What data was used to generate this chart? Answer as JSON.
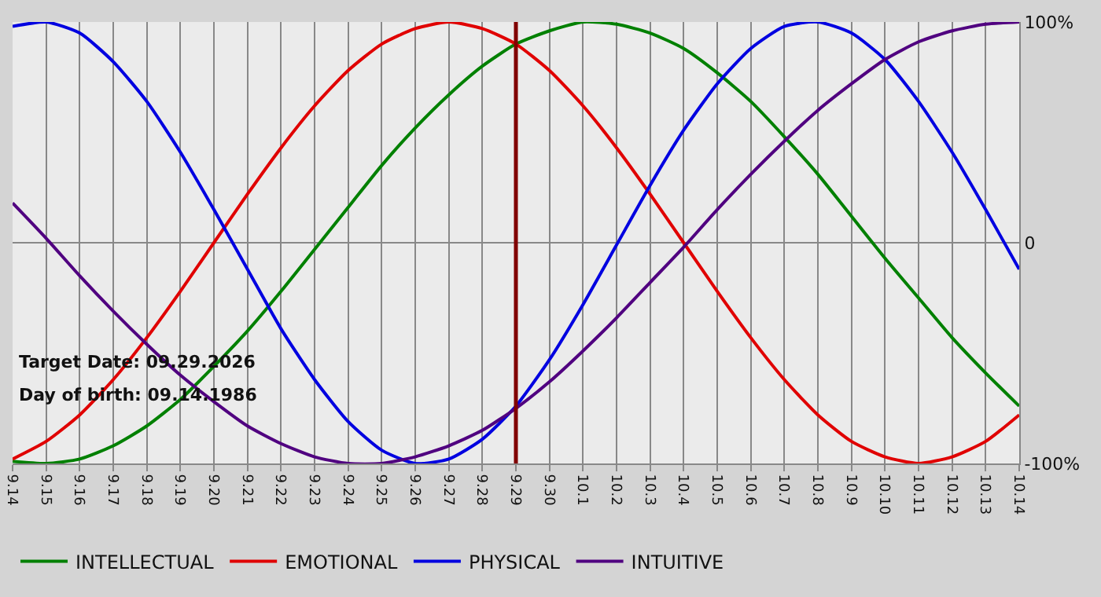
{
  "chart_data": {
    "type": "line",
    "categories": [
      "9.14",
      "9.15",
      "9.16",
      "9.17",
      "9.18",
      "9.19",
      "9.20",
      "9.21",
      "9.22",
      "9.23",
      "9.24",
      "9.25",
      "9.26",
      "9.27",
      "9.28",
      "9.29",
      "9.30",
      "10.1",
      "10.2",
      "10.3",
      "10.4",
      "10.5",
      "10.6",
      "10.7",
      "10.8",
      "10.9",
      "10.10",
      "10.11",
      "10.12",
      "10.13",
      "10.14"
    ],
    "series": [
      {
        "name": "INTELLECTUAL",
        "color": "#008000",
        "values": [
          -99,
          -100,
          -98,
          -92,
          -83,
          -71,
          -56,
          -40,
          -22,
          -3,
          16,
          35,
          52,
          67,
          80,
          90,
          96,
          100,
          99,
          95,
          88,
          77,
          64,
          48,
          31,
          12,
          -7,
          -25,
          -43,
          -59,
          -74
        ]
      },
      {
        "name": "EMOTIONAL",
        "color": "#e00000",
        "values": [
          -98,
          -90,
          -78,
          -62,
          -43,
          -22,
          0,
          22,
          43,
          62,
          78,
          90,
          97,
          100,
          97,
          90,
          78,
          62,
          43,
          22,
          0,
          -22,
          -43,
          -62,
          -78,
          -90,
          -97,
          -100,
          -97,
          -90,
          -78
        ]
      },
      {
        "name": "PHYSICAL",
        "color": "#0000e0",
        "values": [
          98,
          100,
          95,
          82,
          64,
          41,
          15,
          -12,
          -39,
          -62,
          -81,
          -94,
          -100,
          -98,
          -89,
          -74,
          -53,
          -28,
          -1,
          26,
          51,
          72,
          88,
          98,
          100,
          95,
          83,
          64,
          41,
          15,
          -12
        ]
      },
      {
        "name": "INTUITIVE",
        "color": "#500080",
        "values": [
          18,
          2,
          -15,
          -31,
          -46,
          -60,
          -72,
          -83,
          -91,
          -97,
          -100,
          -100,
          -97,
          -92,
          -85,
          -75,
          -63,
          -49,
          -34,
          -18,
          -2,
          15,
          31,
          46,
          60,
          72,
          83,
          91,
          96,
          99,
          100
        ]
      }
    ],
    "ylim": [
      -100,
      100
    ],
    "yticks": [
      {
        "value": -100,
        "label": "-100%"
      },
      0,
      {
        "value": 100,
        "label": "100%"
      }
    ],
    "grid": true,
    "legend": "bottom",
    "marker": "none",
    "line_style": "solid",
    "ref_lines": [
      {
        "axis": "x",
        "value": "9.29",
        "color": "#800000"
      }
    ],
    "annotations": [
      "Target Date: 09.29.2026",
      "Day of birth: 09.14.1986"
    ]
  }
}
